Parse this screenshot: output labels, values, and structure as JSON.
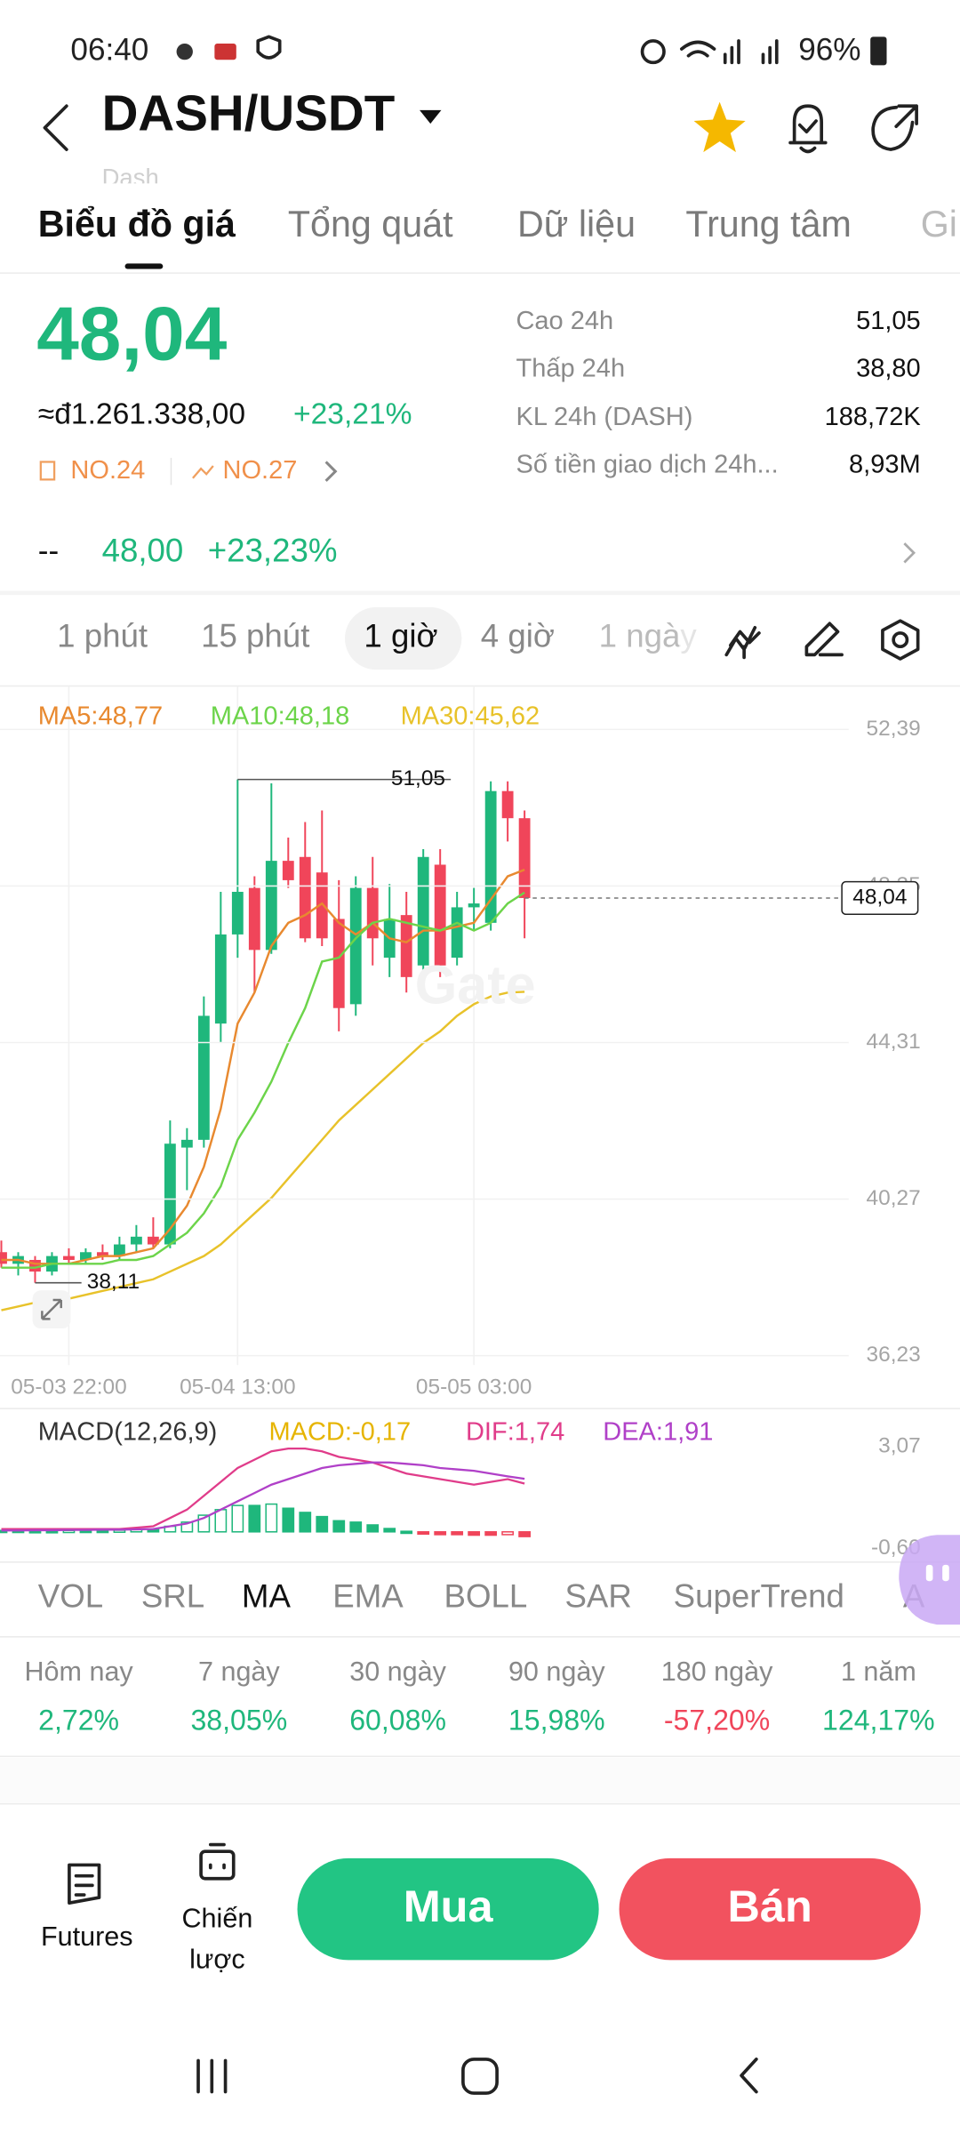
{
  "status_bar": {
    "time": "06:40",
    "battery": "96%"
  },
  "header": {
    "pair": "DASH/USDT",
    "subtitle": "Dash"
  },
  "tabs": [
    "Biểu đồ giá",
    "Tổng quát",
    "Dữ liệu",
    "Trung tâm",
    "Gi"
  ],
  "price": {
    "last": "48,04",
    "fiat": "≈đ1.261.338,00",
    "change": "+23,21%",
    "rank_1": "NO.24",
    "rank_2": "NO.27"
  },
  "stats": [
    {
      "label": "Cao 24h",
      "value": "51,05"
    },
    {
      "label": "Thấp 24h",
      "value": "38,80"
    },
    {
      "label": "KL 24h (DASH)",
      "value": "188,72K"
    },
    {
      "label": "Số tiền giao dịch 24h...",
      "value": "8,93M"
    }
  ],
  "index_row": {
    "label": "--",
    "price": "48,00",
    "change": "+23,23%"
  },
  "intervals": [
    "1 phút",
    "15 phút",
    "1 giờ",
    "4 giờ",
    "1 ngày"
  ],
  "chart_data": [
    {
      "type": "candlestick",
      "watermark": "Gate",
      "categories": [
        null,
        null,
        null,
        null,
        "05-03 22:00",
        null,
        null,
        null,
        null,
        null,
        null,
        null,
        null,
        null,
        "05-04 13:00",
        null,
        null,
        null,
        null,
        null,
        null,
        null,
        null,
        null,
        null,
        null,
        null,
        null,
        "05-05 03:00",
        null,
        null,
        null
      ],
      "open": [
        38.9,
        38.6,
        38.7,
        38.4,
        38.8,
        38.7,
        38.9,
        38.8,
        39.1,
        39.3,
        39.1,
        41.6,
        41.8,
        44.8,
        47.1,
        48.3,
        46.7,
        49.0,
        49.1,
        48.7,
        47.5,
        45.3,
        48.3,
        46.5,
        47.6,
        46.3,
        48.9,
        46.5,
        47.8,
        47.4,
        50.8,
        50.1
      ],
      "high": [
        39.2,
        38.9,
        38.8,
        38.9,
        39.0,
        39.0,
        39.1,
        39.3,
        39.6,
        39.8,
        42.3,
        42.1,
        45.5,
        48.2,
        51.1,
        48.6,
        51.0,
        49.6,
        50.0,
        50.3,
        48.5,
        48.6,
        49.1,
        48.4,
        48.2,
        49.3,
        49.3,
        48.2,
        48.3,
        51.05,
        51.05,
        50.3
      ],
      "low": [
        38.5,
        38.3,
        38.11,
        38.3,
        38.6,
        38.6,
        38.7,
        38.7,
        38.9,
        39.0,
        39.0,
        40.5,
        41.6,
        44.3,
        46.5,
        45.6,
        46.6,
        48.3,
        46.9,
        46.8,
        44.6,
        45.0,
        46.3,
        46.0,
        45.6,
        46.0,
        46.0,
        46.3,
        47.2,
        47.2,
        49.5,
        47.0
      ],
      "close": [
        38.6,
        38.8,
        38.4,
        38.8,
        38.7,
        38.9,
        38.8,
        39.1,
        39.3,
        39.1,
        41.7,
        41.8,
        45.0,
        47.1,
        48.2,
        46.7,
        49.0,
        48.5,
        47.0,
        47.0,
        45.2,
        48.3,
        47.0,
        47.5,
        46.0,
        49.1,
        46.3,
        47.8,
        47.9,
        50.8,
        50.1,
        48.04
      ],
      "up_color": "#1fb77c",
      "down_color": "#f0455a",
      "series": [
        {
          "name": "MA5:48,77",
          "color": "#e8892f",
          "values": [
            38.7,
            38.7,
            38.6,
            38.6,
            38.6,
            38.7,
            38.8,
            38.8,
            38.9,
            39.0,
            39.5,
            40.1,
            41.1,
            42.6,
            44.8,
            45.6,
            46.8,
            47.4,
            47.6,
            47.9,
            47.4,
            47.1,
            47.4,
            47.0,
            46.9,
            47.2,
            47.2,
            47.3,
            47.4,
            48.0,
            48.6,
            48.77
          ]
        },
        {
          "name": "MA10:48,18",
          "color": "#6cd44a",
          "values": [
            38.5,
            38.5,
            38.5,
            38.6,
            38.6,
            38.6,
            38.6,
            38.7,
            38.7,
            38.8,
            39.1,
            39.4,
            39.9,
            40.6,
            41.8,
            42.5,
            43.3,
            44.3,
            45.2,
            46.4,
            46.5,
            47.0,
            47.4,
            47.5,
            47.4,
            47.3,
            47.2,
            47.4,
            47.2,
            47.4,
            47.9,
            48.18
          ]
        },
        {
          "name": "MA30:45,62",
          "color": "#e8c22a",
          "values": [
            37.4,
            37.5,
            37.6,
            37.6,
            37.7,
            37.8,
            37.9,
            38.0,
            38.1,
            38.2,
            38.4,
            38.6,
            38.8,
            39.1,
            39.5,
            39.9,
            40.3,
            40.8,
            41.3,
            41.8,
            42.3,
            42.7,
            43.1,
            43.5,
            43.9,
            44.3,
            44.6,
            45.0,
            45.3,
            45.5,
            45.6,
            45.62
          ]
        }
      ],
      "annotations": {
        "high": "51,05",
        "low": "38,11",
        "last": "48,04"
      },
      "ylim": [
        36.23,
        52.39
      ],
      "yticks": [
        {
          "value": 52.39,
          "label": "52,39"
        },
        {
          "value": 48.35,
          "label": "48,35"
        },
        {
          "value": 44.31,
          "label": "44,31"
        },
        {
          "value": 40.27,
          "label": "40,27"
        },
        {
          "value": 36.23,
          "label": "36,23"
        }
      ],
      "grid": true
    },
    {
      "type": "macd",
      "title": "MACD(12,26,9)",
      "up_color": "#1fb77c",
      "down_color": "#f0455a",
      "series": [
        {
          "name": "MACD:-0,17",
          "color": "#e6b400",
          "values": [
            0.05,
            0.05,
            0.04,
            0.04,
            0.05,
            0.05,
            0.05,
            0.06,
            0.08,
            0.08,
            0.2,
            0.35,
            0.6,
            0.8,
            0.95,
            0.95,
            1.0,
            0.85,
            0.7,
            0.55,
            0.4,
            0.35,
            0.25,
            0.12,
            0.02,
            -0.08,
            -0.1,
            -0.1,
            -0.12,
            -0.12,
            -0.1,
            -0.17
          ]
        },
        {
          "name": "DIF:1,74",
          "color": "#e03c8a",
          "values": [
            0.1,
            0.1,
            0.1,
            0.1,
            0.1,
            0.1,
            0.1,
            0.1,
            0.15,
            0.2,
            0.5,
            0.8,
            1.3,
            1.8,
            2.3,
            2.6,
            2.9,
            3.0,
            3.0,
            2.9,
            2.7,
            2.6,
            2.5,
            2.3,
            2.1,
            2.0,
            1.9,
            1.8,
            1.7,
            1.8,
            1.9,
            1.74
          ]
        },
        {
          "name": "DEA:1,91",
          "color": "#b040c8",
          "values": [
            0.05,
            0.05,
            0.06,
            0.06,
            0.07,
            0.07,
            0.08,
            0.08,
            0.09,
            0.1,
            0.2,
            0.3,
            0.5,
            0.8,
            1.1,
            1.4,
            1.7,
            1.9,
            2.1,
            2.3,
            2.4,
            2.45,
            2.5,
            2.5,
            2.45,
            2.4,
            2.3,
            2.25,
            2.2,
            2.1,
            2.0,
            1.91
          ]
        }
      ],
      "ylim": [
        -0.6,
        3.07
      ],
      "yticks": [
        {
          "value": 3.07,
          "label": "3,07"
        },
        {
          "value": -0.6,
          "label": "-0,60"
        }
      ]
    }
  ],
  "indicators": [
    "VOL",
    "SRL",
    "MA",
    "EMA",
    "BOLL",
    "SAR",
    "SuperTrend",
    "A"
  ],
  "performance": [
    {
      "label": "Hôm nay",
      "value": "2,72%"
    },
    {
      "label": "7 ngày",
      "value": "38,05%"
    },
    {
      "label": "30 ngày",
      "value": "60,08%"
    },
    {
      "label": "90 ngày",
      "value": "15,98%"
    },
    {
      "label": "180 ngày",
      "value": "-57,20%"
    },
    {
      "label": "1 năm",
      "value": "124,17%"
    }
  ],
  "actions": {
    "futures": "Futures",
    "strategy": "Chiến lược",
    "buy": "Mua",
    "sell": "Bán"
  }
}
